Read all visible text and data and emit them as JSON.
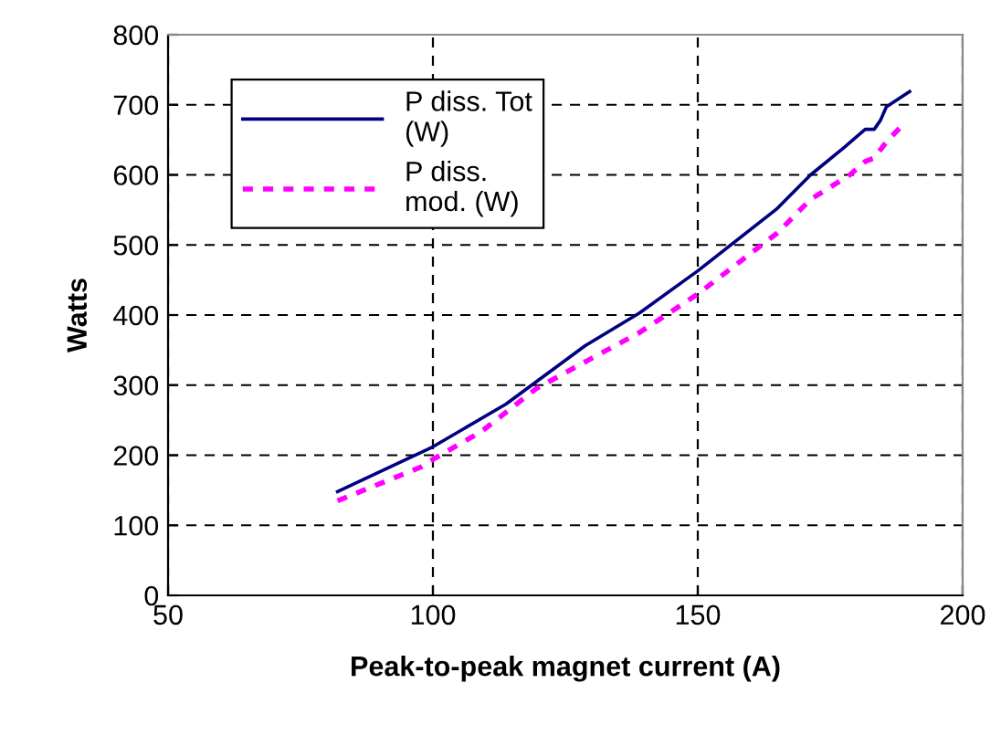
{
  "chart_data": {
    "type": "line",
    "xlabel": "Peak-to-peak magnet current (A)",
    "ylabel": "Watts",
    "xlim": [
      50,
      200
    ],
    "xticks": [
      50,
      100,
      150,
      200
    ],
    "ylim": [
      0,
      800
    ],
    "yticks": [
      0,
      100,
      200,
      300,
      400,
      500,
      600,
      700,
      800
    ],
    "grid": true,
    "legend": "top left",
    "marker": "none",
    "series": [
      {
        "name": "P diss. Tot\n(W)",
        "color": "#000080",
        "line_style": "solid",
        "x": [
          82,
          100,
          113.8,
          119,
          128.7,
          139,
          150,
          165,
          171.3,
          177.6,
          181.6,
          183.3,
          184.5,
          185.6,
          190
        ],
        "values": [
          148,
          212,
          273,
          302,
          356,
          403,
          463,
          552,
          600,
          639,
          665,
          665,
          678,
          697,
          719
        ]
      },
      {
        "name": "P diss.\nmod. (W)",
        "color": "#ff00ff",
        "line_style": "dotted",
        "x": [
          82,
          97.7,
          100,
          109.2,
          119.5,
          129.9,
          139,
          150,
          165,
          171.3,
          178.7,
          181.6,
          183.3,
          185.6,
          189
        ],
        "values": [
          135,
          183,
          194,
          234,
          295,
          338,
          375,
          430,
          517,
          565,
          600,
          619,
          624,
          647,
          674
        ]
      }
    ]
  }
}
